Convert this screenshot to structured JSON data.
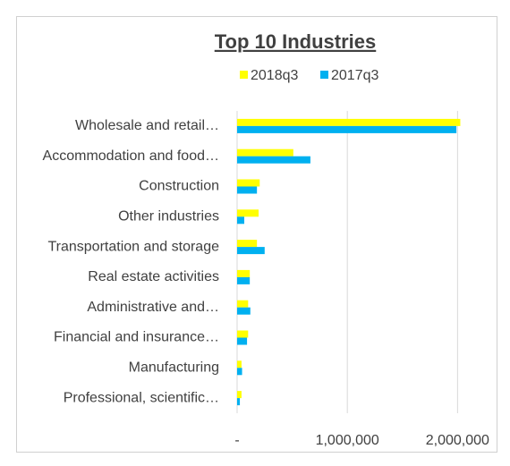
{
  "chart_data": {
    "type": "hbar",
    "title": "Top 10 Industries",
    "categories": [
      "Wholesale and retail…",
      "Accommodation and food…",
      "Construction",
      "Other industries",
      "Transportation and storage",
      "Real estate activities",
      "Administrative and…",
      "Financial and insurance…",
      "Manufacturing",
      "Professional, scientific…"
    ],
    "series": [
      {
        "name": "2018q3",
        "color": "#ffff00",
        "values": [
          2025000,
          510000,
          205000,
          195000,
          180000,
          115000,
          100000,
          100000,
          40000,
          40000
        ]
      },
      {
        "name": "2017q3",
        "color": "#00b0f0",
        "values": [
          1990000,
          665000,
          180000,
          65000,
          250000,
          115000,
          120000,
          90000,
          45000,
          25000
        ]
      }
    ],
    "xlim": [
      0,
      2200000
    ],
    "xticks": [
      {
        "value": 0,
        "label": "-"
      },
      {
        "value": 1000000,
        "label": "1,000,000"
      },
      {
        "value": 2000000,
        "label": "2,000,000"
      }
    ],
    "grid": true,
    "legend": "top"
  }
}
